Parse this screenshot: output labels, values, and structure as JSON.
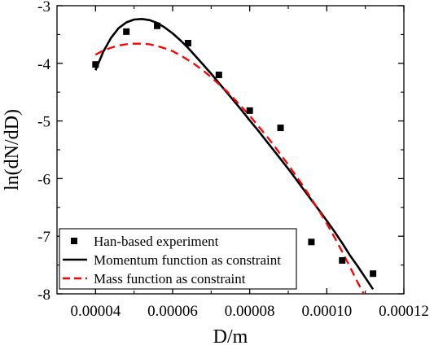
{
  "chart_data": {
    "type": "scatter",
    "title": "",
    "xlabel": "D/m",
    "ylabel": "ln(dN/dD)",
    "xlim": [
      3e-05,
      0.00012
    ],
    "ylim": [
      -8,
      -3
    ],
    "xticks": [
      4e-05,
      6e-05,
      8e-05,
      0.0001,
      0.00012
    ],
    "xtick_labels": [
      "0.00004",
      "0.00006",
      "0.00008",
      "0.00010",
      "0.00012"
    ],
    "yticks": [
      -8,
      -7,
      -6,
      -5,
      -4,
      -3
    ],
    "ytick_labels": [
      "-8",
      "-7",
      "-6",
      "-5",
      "-4",
      "-3"
    ],
    "grid": false,
    "legend_position": "bottom-left",
    "series": [
      {
        "name": "Han-based experiment",
        "kind": "markers",
        "marker": "square",
        "color": "#000000",
        "x": [
          4e-05,
          4.8e-05,
          5.6e-05,
          6.4e-05,
          7.2e-05,
          8e-05,
          8.8e-05,
          9.6e-05,
          0.000104,
          0.000112
        ],
        "y": [
          -4.02,
          -3.45,
          -3.35,
          -3.65,
          -4.2,
          -4.82,
          -5.12,
          -7.1,
          -7.42,
          -7.65
        ]
      },
      {
        "name": "Momentum function as constraint",
        "kind": "line",
        "style": "solid",
        "color": "#000000",
        "x": [
          4e-05,
          4.2e-05,
          4.4e-05,
          4.6e-05,
          4.8e-05,
          5e-05,
          5.2e-05,
          5.4e-05,
          5.6e-05,
          5.8e-05,
          6e-05,
          6.2e-05,
          6.4e-05,
          6.6e-05,
          6.8e-05,
          7e-05,
          7.2e-05,
          7.4e-05,
          7.6e-05,
          7.8e-05,
          8e-05,
          8.2e-05,
          8.4e-05,
          8.6e-05,
          8.8e-05,
          9e-05,
          9.2e-05,
          9.4e-05,
          9.6e-05,
          9.8e-05,
          0.0001,
          0.000102,
          0.000104,
          0.000106,
          0.000108,
          0.00011,
          0.000112
        ],
        "y": [
          -4.12,
          -3.8,
          -3.56,
          -3.39,
          -3.29,
          -3.24,
          -3.23,
          -3.25,
          -3.3,
          -3.38,
          -3.48,
          -3.6,
          -3.73,
          -3.88,
          -4.03,
          -4.18,
          -4.34,
          -4.5,
          -4.66,
          -4.82,
          -4.99,
          -5.15,
          -5.32,
          -5.49,
          -5.66,
          -5.83,
          -6.01,
          -6.19,
          -6.37,
          -6.55,
          -6.73,
          -6.92,
          -7.12,
          -7.33,
          -7.52,
          -7.72,
          -7.92
        ]
      },
      {
        "name": "Mass function as constraint",
        "kind": "line",
        "style": "dashed",
        "color": "#ff0000",
        "x": [
          4e-05,
          4.2e-05,
          4.4e-05,
          4.6e-05,
          4.8e-05,
          5e-05,
          5.2e-05,
          5.4e-05,
          5.6e-05,
          5.8e-05,
          6e-05,
          6.2e-05,
          6.4e-05,
          6.6e-05,
          6.8e-05,
          7e-05,
          7.2e-05,
          7.4e-05,
          7.6e-05,
          7.8e-05,
          8e-05,
          8.2e-05,
          8.4e-05,
          8.6e-05,
          8.8e-05,
          9e-05,
          9.2e-05,
          9.4e-05,
          9.6e-05,
          9.8e-05,
          0.0001,
          0.000102,
          0.000104,
          0.000106,
          0.000108,
          0.00011
        ],
        "y": [
          -3.85,
          -3.78,
          -3.73,
          -3.69,
          -3.67,
          -3.66,
          -3.66,
          -3.67,
          -3.7,
          -3.74,
          -3.79,
          -3.86,
          -3.94,
          -4.03,
          -4.13,
          -4.24,
          -4.36,
          -4.48,
          -4.62,
          -4.76,
          -4.91,
          -5.07,
          -5.23,
          -5.4,
          -5.58,
          -5.76,
          -5.95,
          -6.14,
          -6.35,
          -6.56,
          -6.78,
          -7.02,
          -7.27,
          -7.53,
          -7.8,
          -8.05
        ]
      }
    ]
  }
}
